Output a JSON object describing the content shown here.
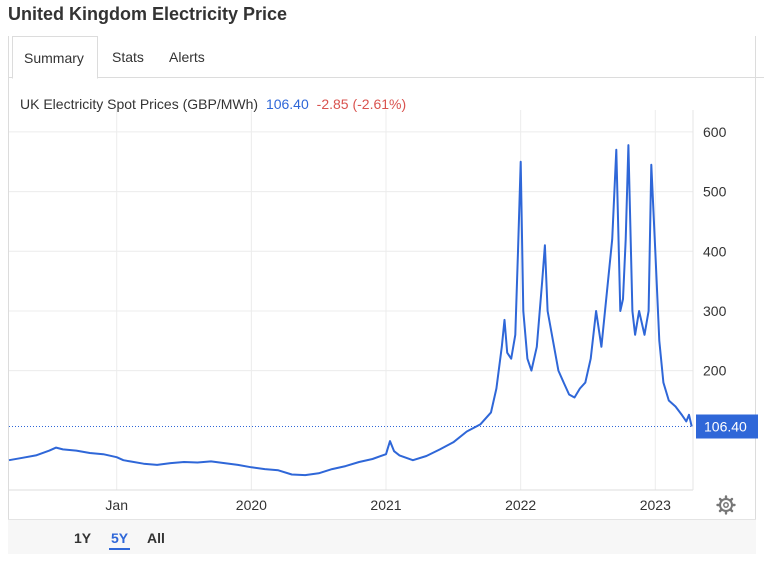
{
  "page": {
    "title": "United Kingdom Electricity Price"
  },
  "tabs": [
    {
      "label": "Summary"
    },
    {
      "label": "Stats"
    },
    {
      "label": "Alerts"
    }
  ],
  "header": {
    "series_name": "UK Electricity Spot Prices (GBP/MWh)",
    "last_value": "106.40",
    "change": "-2.85 (-2.61%)"
  },
  "range_buttons": [
    {
      "label": "1Y"
    },
    {
      "label": "5Y"
    },
    {
      "label": "All"
    }
  ],
  "settings": {
    "icon": "gear-icon"
  },
  "colors": {
    "line": "#2f67d8",
    "change_negative": "#d9534f",
    "grid": "#ececec"
  },
  "chart_data": {
    "type": "line",
    "title": "UK Electricity Spot Prices (GBP/MWh)",
    "xlabel": "",
    "ylabel": "",
    "x_tick_labels": [
      "Jan",
      "2020",
      "2021",
      "2022",
      "2023"
    ],
    "x_ticks": [
      2019.0,
      2020.0,
      2021.0,
      2022.0,
      2023.0
    ],
    "xlim": [
      2018.2,
      2023.28
    ],
    "ylim": [
      0,
      620
    ],
    "y_ticks": [
      200,
      300,
      400,
      500,
      600
    ],
    "y_tick_labels": [
      "200",
      "300",
      "400",
      "500",
      "600"
    ],
    "axis_side": "right",
    "grid": true,
    "last_value_label": "106.40",
    "series": [
      {
        "values": [
          [
            2018.2,
            50
          ],
          [
            2018.3,
            54
          ],
          [
            2018.4,
            58
          ],
          [
            2018.5,
            66
          ],
          [
            2018.55,
            71
          ],
          [
            2018.6,
            68
          ],
          [
            2018.7,
            66
          ],
          [
            2018.8,
            62
          ],
          [
            2018.9,
            60
          ],
          [
            2019.0,
            55
          ],
          [
            2019.05,
            50
          ],
          [
            2019.1,
            48
          ],
          [
            2019.2,
            44
          ],
          [
            2019.3,
            42
          ],
          [
            2019.4,
            45
          ],
          [
            2019.5,
            47
          ],
          [
            2019.6,
            46
          ],
          [
            2019.7,
            48
          ],
          [
            2019.8,
            45
          ],
          [
            2019.9,
            42
          ],
          [
            2020.0,
            38
          ],
          [
            2020.1,
            35
          ],
          [
            2020.2,
            33
          ],
          [
            2020.3,
            26
          ],
          [
            2020.4,
            25
          ],
          [
            2020.5,
            28
          ],
          [
            2020.6,
            35
          ],
          [
            2020.7,
            40
          ],
          [
            2020.8,
            47
          ],
          [
            2020.9,
            52
          ],
          [
            2021.0,
            60
          ],
          [
            2021.03,
            82
          ],
          [
            2021.06,
            65
          ],
          [
            2021.1,
            58
          ],
          [
            2021.2,
            50
          ],
          [
            2021.3,
            57
          ],
          [
            2021.4,
            68
          ],
          [
            2021.5,
            80
          ],
          [
            2021.6,
            98
          ],
          [
            2021.7,
            110
          ],
          [
            2021.78,
            130
          ],
          [
            2021.82,
            170
          ],
          [
            2021.86,
            240
          ],
          [
            2021.88,
            285
          ],
          [
            2021.9,
            230
          ],
          [
            2021.93,
            220
          ],
          [
            2021.96,
            260
          ],
          [
            2021.98,
            400
          ],
          [
            2022.0,
            550
          ],
          [
            2022.02,
            300
          ],
          [
            2022.05,
            220
          ],
          [
            2022.08,
            200
          ],
          [
            2022.12,
            240
          ],
          [
            2022.16,
            350
          ],
          [
            2022.18,
            410
          ],
          [
            2022.2,
            300
          ],
          [
            2022.24,
            250
          ],
          [
            2022.28,
            200
          ],
          [
            2022.32,
            180
          ],
          [
            2022.36,
            160
          ],
          [
            2022.4,
            155
          ],
          [
            2022.44,
            170
          ],
          [
            2022.48,
            180
          ],
          [
            2022.52,
            220
          ],
          [
            2022.56,
            300
          ],
          [
            2022.6,
            240
          ],
          [
            2022.64,
            330
          ],
          [
            2022.68,
            420
          ],
          [
            2022.71,
            570
          ],
          [
            2022.74,
            300
          ],
          [
            2022.76,
            320
          ],
          [
            2022.78,
            420
          ],
          [
            2022.8,
            578
          ],
          [
            2022.83,
            300
          ],
          [
            2022.85,
            260
          ],
          [
            2022.88,
            300
          ],
          [
            2022.92,
            260
          ],
          [
            2022.95,
            300
          ],
          [
            2022.97,
            545
          ],
          [
            2023.0,
            400
          ],
          [
            2023.03,
            250
          ],
          [
            2023.06,
            180
          ],
          [
            2023.1,
            150
          ],
          [
            2023.15,
            140
          ],
          [
            2023.2,
            125
          ],
          [
            2023.23,
            115
          ],
          [
            2023.25,
            126
          ],
          [
            2023.27,
            106.4
          ]
        ]
      }
    ]
  }
}
